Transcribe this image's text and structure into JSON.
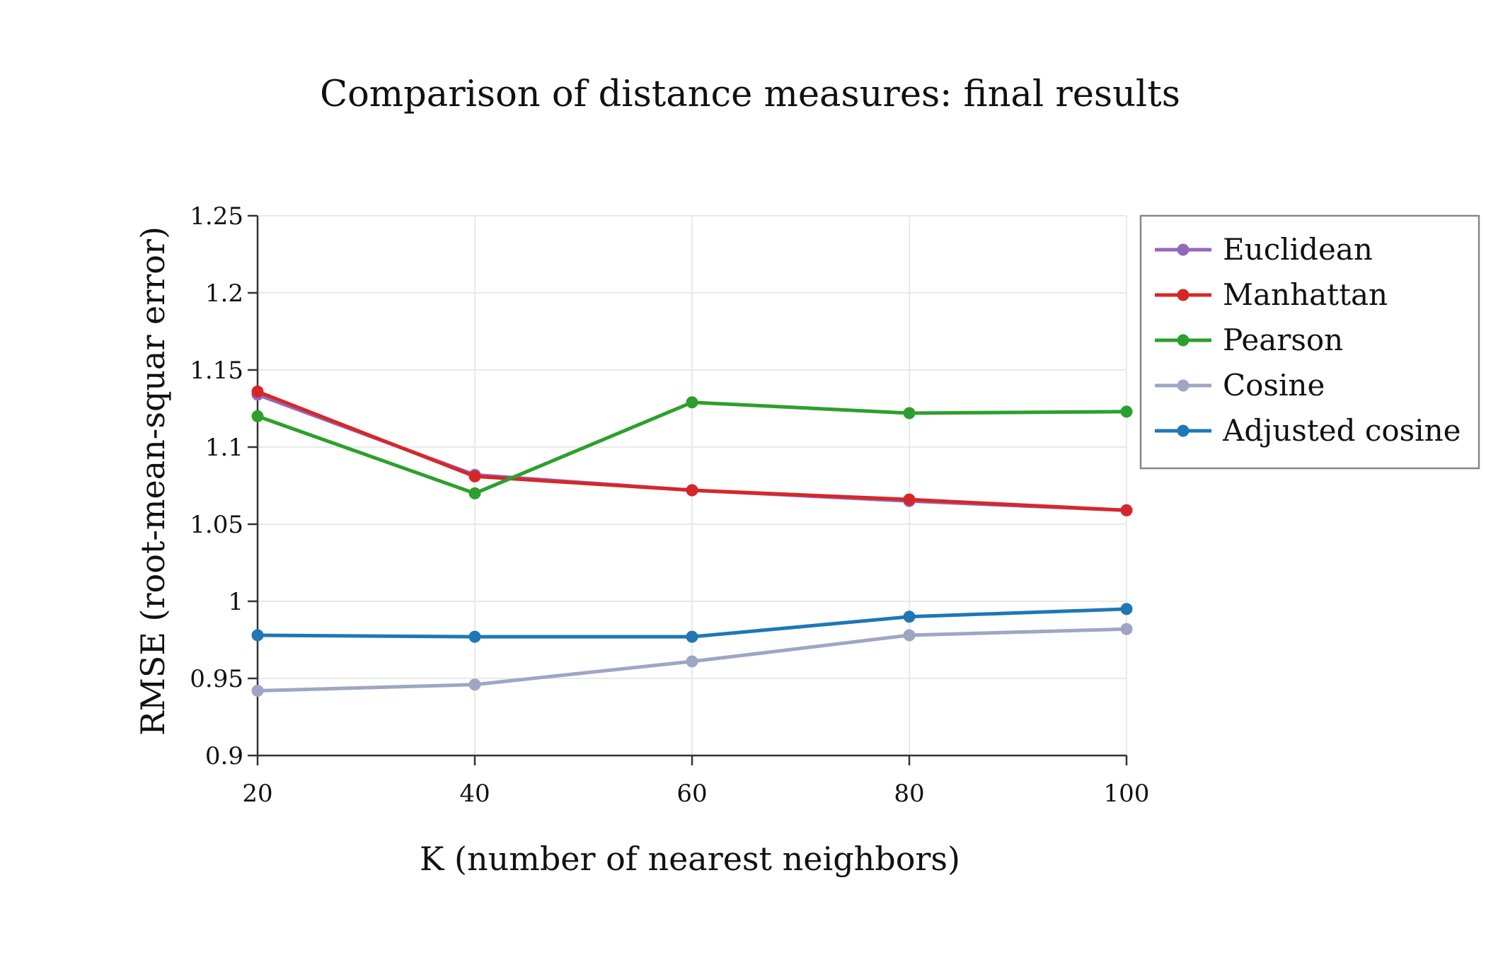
{
  "chart_data": {
    "type": "line",
    "title": "Comparison of distance measures: final results",
    "xlabel": "K (number of nearest neighbors)",
    "ylabel": "RMSE (root-mean-squar error)",
    "x": [
      20,
      40,
      60,
      80,
      100
    ],
    "xticks": [
      "20",
      "40",
      "60",
      "80",
      "100"
    ],
    "yticks": [
      "0.9",
      "0.95",
      "1",
      "1.05",
      "1.1",
      "1.15",
      "1.2",
      "1.25"
    ],
    "xlim": [
      20,
      100
    ],
    "ylim": [
      0.9,
      1.25
    ],
    "grid": true,
    "legend_position": "top-right",
    "series": [
      {
        "name": "Euclidean",
        "color": "#9467bd",
        "values": [
          1.134,
          1.082,
          1.072,
          1.065,
          1.059
        ]
      },
      {
        "name": "Manhattan",
        "color": "#d62728",
        "values": [
          1.136,
          1.081,
          1.072,
          1.066,
          1.059
        ]
      },
      {
        "name": "Pearson",
        "color": "#2ca02c",
        "values": [
          1.12,
          1.07,
          1.129,
          1.122,
          1.123
        ]
      },
      {
        "name": "Cosine",
        "color": "#9ea6c4",
        "values": [
          0.942,
          0.946,
          0.961,
          0.978,
          0.982
        ]
      },
      {
        "name": "Adjusted cosine",
        "color": "#1f77b4",
        "values": [
          0.978,
          0.977,
          0.977,
          0.99,
          0.995
        ]
      }
    ]
  }
}
